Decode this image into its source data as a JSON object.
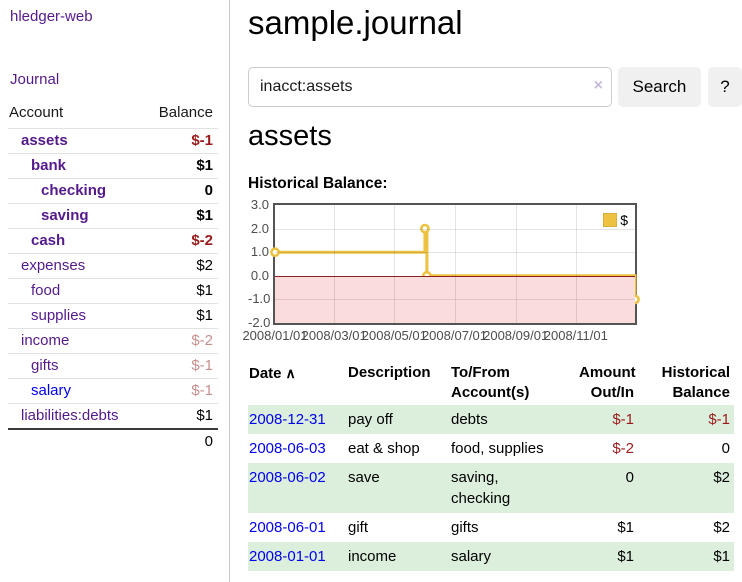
{
  "sidebar": {
    "brand": "hledger-web",
    "journal_link": "Journal",
    "accounts_table": {
      "header": {
        "account": "Account",
        "balance": "Balance"
      },
      "rows": [
        {
          "name": "assets",
          "level": 0,
          "balance": "$-1",
          "bold": true,
          "negative": "strong"
        },
        {
          "name": "bank",
          "level": 1,
          "balance": "$1",
          "bold": true,
          "negative": ""
        },
        {
          "name": "checking",
          "level": 2,
          "balance": "0",
          "bold": true,
          "negative": ""
        },
        {
          "name": "saving",
          "level": 2,
          "balance": "$1",
          "bold": true,
          "negative": ""
        },
        {
          "name": "cash",
          "level": 1,
          "balance": "$-2",
          "bold": true,
          "negative": "strong"
        },
        {
          "name": "expenses",
          "level": 0,
          "balance": "$2",
          "bold": false,
          "negative": ""
        },
        {
          "name": "food",
          "level": 1,
          "balance": "$1",
          "bold": false,
          "negative": ""
        },
        {
          "name": "supplies",
          "level": 1,
          "balance": "$1",
          "bold": false,
          "negative": ""
        },
        {
          "name": "income",
          "level": 0,
          "balance": "$-2",
          "bold": false,
          "negative": "soft"
        },
        {
          "name": "gifts",
          "level": 1,
          "balance": "$-1",
          "bold": false,
          "negative": "soft"
        },
        {
          "name": "salary",
          "level": 1,
          "balance": "$-1",
          "bold": false,
          "negative": "soft",
          "link_color": "blue"
        },
        {
          "name": "liabilities:debts",
          "level": 0,
          "balance": "$1",
          "bold": false,
          "negative": ""
        }
      ],
      "total": "0"
    }
  },
  "main": {
    "title": "sample.journal",
    "search": {
      "value": "inacct:assets",
      "clear_icon": "×",
      "search_button": "Search",
      "help_button": "?"
    },
    "account_heading": "assets",
    "chart_label": "Historical Balance:"
  },
  "chart_data": {
    "type": "line",
    "step": true,
    "title": "Historical Balance of assets",
    "series": [
      {
        "name": "$",
        "color": "#edc240",
        "points": [
          [
            "2008-01-01",
            1
          ],
          [
            "2008-06-01",
            2
          ],
          [
            "2008-06-03",
            0
          ],
          [
            "2008-12-31",
            -1
          ]
        ]
      }
    ],
    "x_domain": [
      "2008-01-01",
      "2008-12-31"
    ],
    "x_ticks": [
      {
        "date": "2008-01-01",
        "label": "2008/01/01"
      },
      {
        "date": "2008-03-01",
        "label": "2008/03/01"
      },
      {
        "date": "2008-05-01",
        "label": "2008/05/01"
      },
      {
        "date": "2008-07-01",
        "label": "2008/07/01"
      },
      {
        "date": "2008-09-01",
        "label": "2008/09/01"
      },
      {
        "date": "2008-11-01",
        "label": "2008/11/01"
      }
    ],
    "ylim": [
      -2,
      3
    ],
    "y_ticks": [
      3.0,
      2.0,
      1.0,
      0.0,
      -1.0,
      -2.0
    ],
    "grid": true,
    "legend_position": "top-right",
    "legend": {
      "label": "$",
      "color": "#edc240"
    },
    "zero_line_color": "#8b2121",
    "negative_region_color": "#fadcdc"
  },
  "register": {
    "columns": [
      "Date",
      "Description",
      "To/From\nAccount(s)",
      "Amount\nOut/In",
      "Historical\nBalance"
    ],
    "sort_icon": "∧",
    "rows": [
      {
        "date": "2008-12-31",
        "description": "pay off",
        "accounts": "debts",
        "amount": "$-1",
        "balance": "$-1"
      },
      {
        "date": "2008-06-03",
        "description": "eat & shop",
        "accounts": "food, supplies",
        "amount": "$-2",
        "balance": "0"
      },
      {
        "date": "2008-06-02",
        "description": "save",
        "accounts": "saving,\nchecking",
        "amount": "0",
        "balance": "$2"
      },
      {
        "date": "2008-06-01",
        "description": "gift",
        "accounts": "gifts",
        "amount": "$1",
        "balance": "$2"
      },
      {
        "date": "2008-01-01",
        "description": "income",
        "accounts": "salary",
        "amount": "$1",
        "balance": "$1"
      }
    ]
  },
  "colors": {
    "link_purple": "#551a8b",
    "link_blue": "#0000ee",
    "negative_strong": "#9b1b1b",
    "negative_soft": "#c98f8f",
    "row_stripe_green": "#dceedc",
    "chart_series_gold": "#edc240",
    "chart_negative_pink": "#fadcdc",
    "chart_zero_line": "#8b2121"
  }
}
